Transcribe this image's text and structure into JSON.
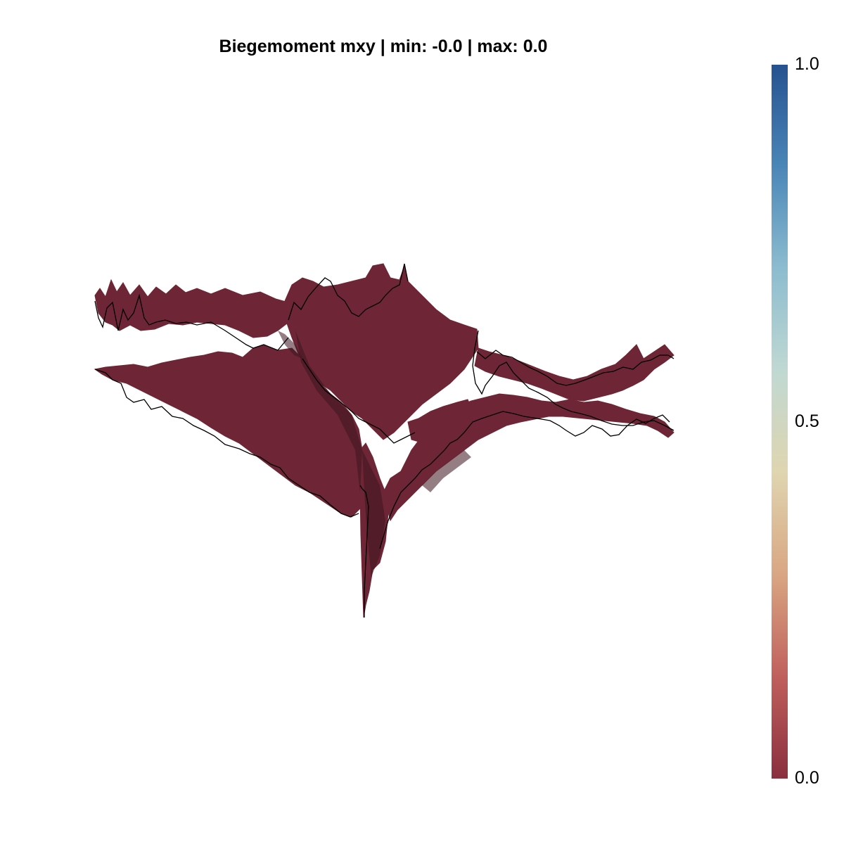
{
  "chart_data": {
    "type": "surface3d",
    "title": "Biegemoment mxy | min: -0.0 | max: 0.0",
    "quantity": "Biegemoment mxy",
    "min_label": "-0.0",
    "max_label": "0.0",
    "surface_color": "#6e2636",
    "edge_color": "#000000",
    "axes_visible": false,
    "grid": false,
    "colorbar": {
      "placement": "right",
      "range": [
        0.0,
        1.0
      ],
      "ticks": [
        {
          "value": 0.0,
          "label": "0.0"
        },
        {
          "value": 0.5,
          "label": "0.5"
        },
        {
          "value": 1.0,
          "label": "1.0"
        }
      ],
      "colormap": [
        "#8a2f3e",
        "#c0605d",
        "#d9a682",
        "#dfd5b0",
        "#c0d8d2",
        "#8cbccf",
        "#4a86b8",
        "#265290"
      ]
    }
  }
}
